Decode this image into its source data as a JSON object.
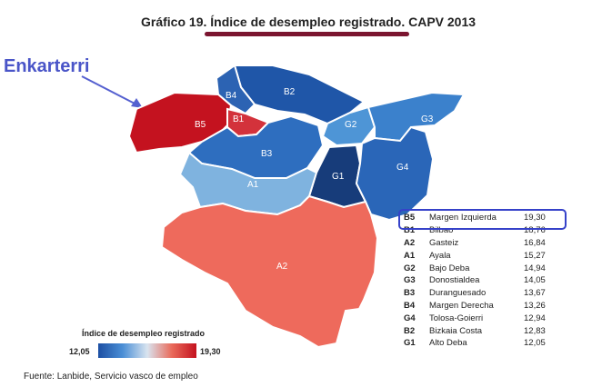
{
  "title": {
    "prefix": "Gráfico 19. ",
    "main": "Índice de desempleo registrado.",
    "suffix": " CAPV 2013"
  },
  "annotation": {
    "label": "Enkarterri"
  },
  "regions": [
    {
      "code": "B5",
      "color": "#c4121f"
    },
    {
      "code": "B1",
      "color": "#d3323b"
    },
    {
      "code": "B4",
      "color": "#2c63b3"
    },
    {
      "code": "B2",
      "color": "#1f56a8"
    },
    {
      "code": "B3",
      "color": "#2e6ebf"
    },
    {
      "code": "G2",
      "color": "#4e95d6"
    },
    {
      "code": "G3",
      "color": "#3b81cc"
    },
    {
      "code": "G4",
      "color": "#2a66b8"
    },
    {
      "code": "G1",
      "color": "#173c7a"
    },
    {
      "code": "A1",
      "color": "#7fb3df"
    },
    {
      "code": "A2",
      "color": "#ee6a5c"
    }
  ],
  "legend": {
    "rows": [
      {
        "code": "B5",
        "name": "Margen Izquierda",
        "value": "19,30"
      },
      {
        "code": "B1",
        "name": "Bilbao",
        "value": "18,76"
      },
      {
        "code": "A2",
        "name": "Gasteiz",
        "value": "16,84"
      },
      {
        "code": "A1",
        "name": "Ayala",
        "value": "15,27"
      },
      {
        "code": "G2",
        "name": "Bajo Deba",
        "value": "14,94"
      },
      {
        "code": "G3",
        "name": "Donostialdea",
        "value": "14,05"
      },
      {
        "code": "B3",
        "name": "Duranguesado",
        "value": "13,67"
      },
      {
        "code": "B4",
        "name": "Margen Derecha",
        "value": "13,26"
      },
      {
        "code": "G4",
        "name": "Tolosa-Goierri",
        "value": "12,94"
      },
      {
        "code": "B2",
        "name": "Bizkaia Costa",
        "value": "12,83"
      },
      {
        "code": "G1",
        "name": "Alto Deba",
        "value": "12,05"
      }
    ]
  },
  "scale": {
    "title": "Índice de desempleo registrado",
    "min": "12,05",
    "max": "19,30"
  },
  "source": "Fuente: Lanbide, Servicio vasco de empleo"
}
